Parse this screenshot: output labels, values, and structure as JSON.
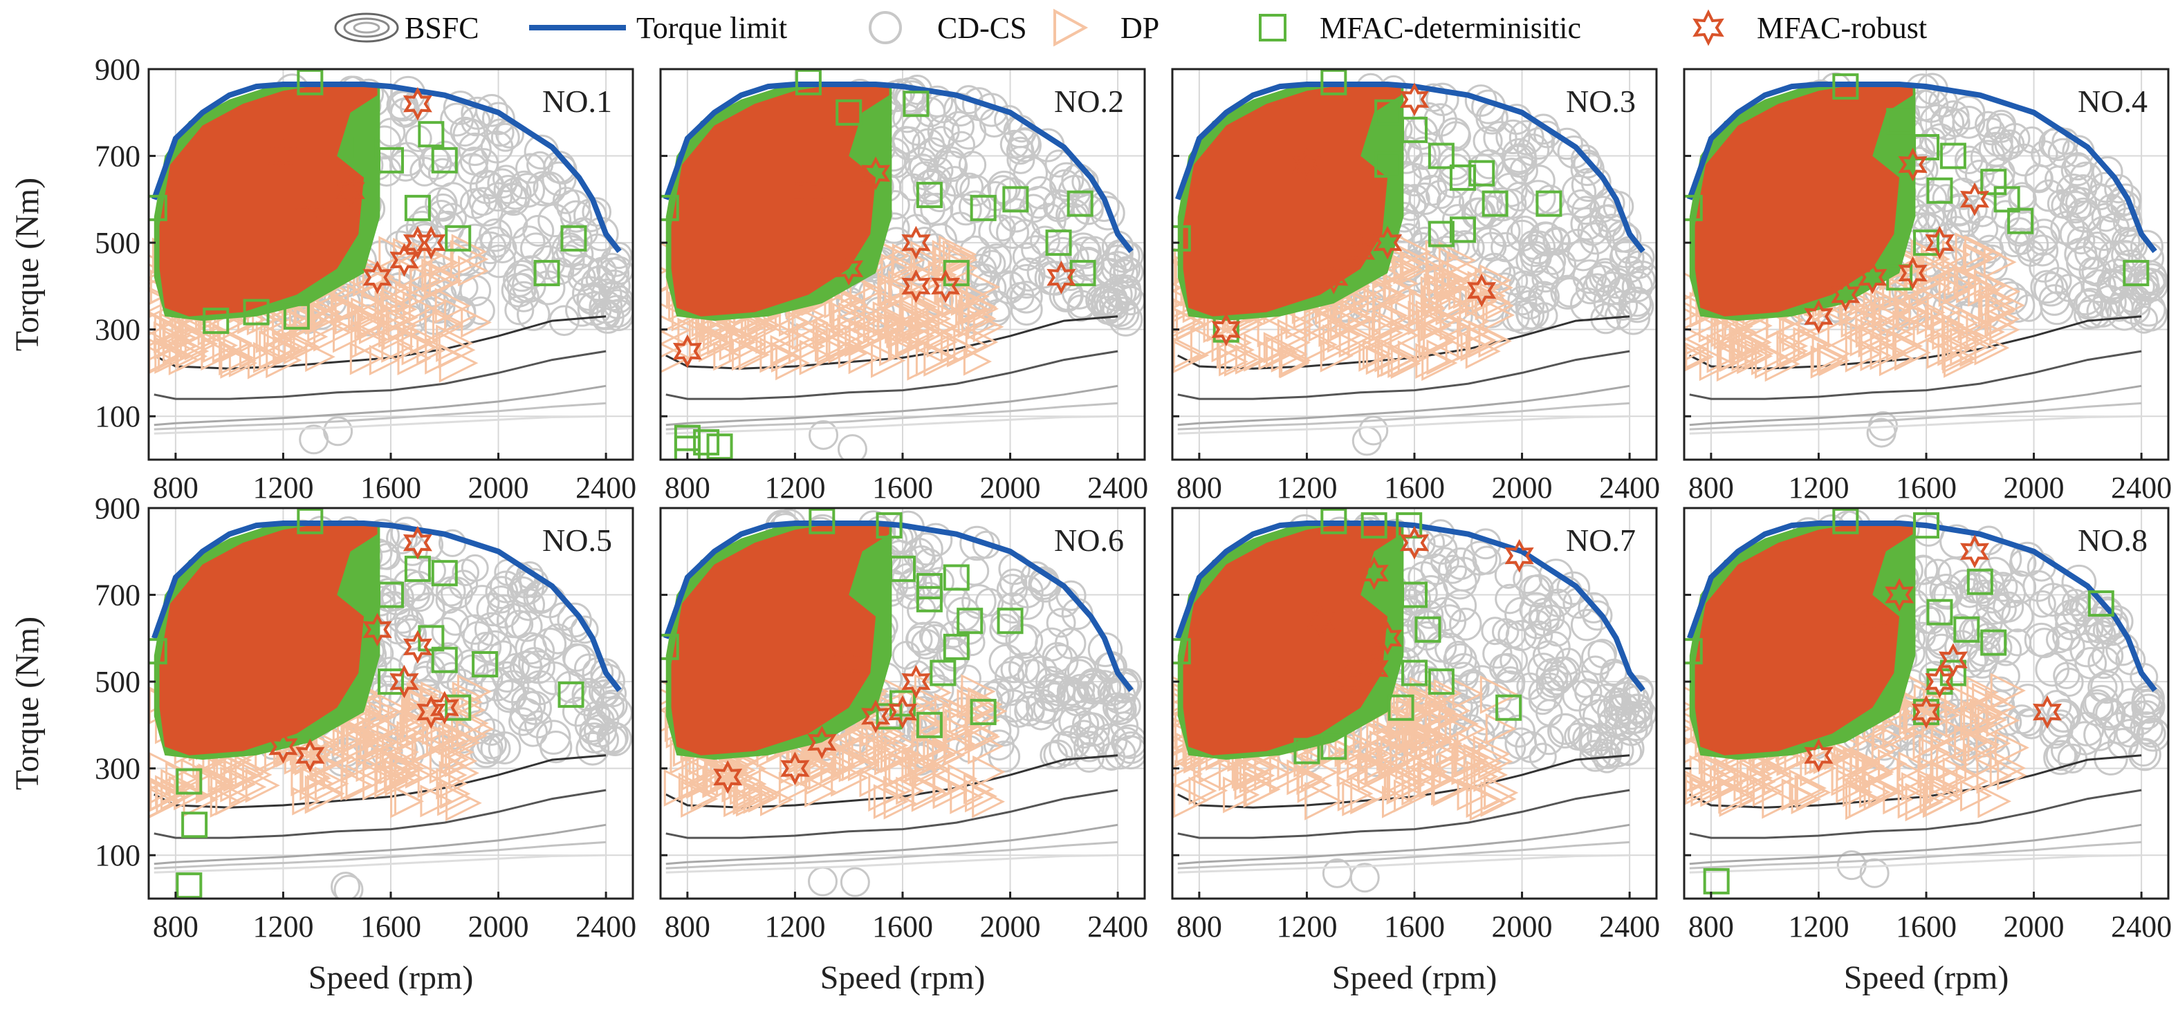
{
  "chart_data": {
    "type": "scatter",
    "layout": "grid 2x4 small multiples",
    "xlabel": "Speed (rpm)",
    "ylabel": "Torque (Nm)",
    "xlim": [
      700,
      2500
    ],
    "ylim": [
      0,
      900
    ],
    "xticks": [
      800,
      1200,
      1600,
      2000,
      2400
    ],
    "yticks": [
      100,
      300,
      500,
      700,
      900
    ],
    "grid": true,
    "legend": {
      "position": "top",
      "entries": [
        {
          "name": "BSFC",
          "marker": "contour-ellipses",
          "color": "#333333"
        },
        {
          "name": "Torque limit",
          "marker": "line",
          "color": "#1f5bb0"
        },
        {
          "name": "CD-CS",
          "marker": "circle",
          "color": "#c8c8c8"
        },
        {
          "name": "DP",
          "marker": "triangle-right",
          "color": "#f6c4a3"
        },
        {
          "name": "MFAC-determinisitic",
          "marker": "square",
          "color": "#5db53d"
        },
        {
          "name": "MFAC-robust",
          "marker": "hexagram",
          "color": "#d9532a"
        }
      ]
    },
    "torque_limit": {
      "x": [
        720,
        800,
        900,
        1000,
        1100,
        1200,
        1300,
        1400,
        1500,
        1600,
        1700,
        1800,
        1900,
        2000,
        2100,
        2200,
        2300,
        2350,
        2400,
        2450
      ],
      "y": [
        600,
        740,
        800,
        840,
        860,
        865,
        865,
        865,
        865,
        860,
        850,
        840,
        820,
        800,
        760,
        720,
        650,
        600,
        520,
        480
      ]
    },
    "bsfc_contours": [
      {
        "x": [
          720,
          800,
          1000,
          1200,
          1400,
          1600,
          1800,
          2000,
          2200,
          2400
        ],
        "y": [
          60,
          62,
          66,
          70,
          74,
          80,
          86,
          92,
          98,
          100
        ]
      },
      {
        "x": [
          720,
          800,
          1000,
          1200,
          1400,
          1600,
          1800,
          2000,
          2200,
          2400
        ],
        "y": [
          70,
          72,
          78,
          82,
          88,
          96,
          104,
          112,
          122,
          130
        ]
      },
      {
        "x": [
          720,
          800,
          1000,
          1200,
          1400,
          1600,
          1800,
          2000,
          2200,
          2400
        ],
        "y": [
          80,
          84,
          90,
          96,
          104,
          112,
          122,
          134,
          150,
          170
        ]
      },
      {
        "x": [
          720,
          800,
          1000,
          1200,
          1400,
          1600,
          1800,
          2000,
          2200,
          2400
        ],
        "y": [
          150,
          140,
          140,
          145,
          155,
          160,
          175,
          200,
          230,
          250
        ]
      },
      {
        "x": [
          720,
          800,
          1000,
          1200,
          1400,
          1600,
          1800,
          2000,
          2200,
          2400
        ],
        "y": [
          240,
          215,
          210,
          215,
          225,
          235,
          255,
          285,
          320,
          330
        ]
      }
    ],
    "panels": [
      {
        "title": "NO.1",
        "cdcs_n": 240,
        "dp_n": 200,
        "mfac_det": [
          [
            720,
            580
          ],
          [
            1300,
            870
          ],
          [
            1850,
            510
          ],
          [
            2180,
            430
          ],
          [
            2280,
            510
          ],
          [
            1700,
            580
          ],
          [
            1500,
            720
          ],
          [
            1600,
            690
          ],
          [
            950,
            320
          ],
          [
            1100,
            340
          ],
          [
            1250,
            330
          ],
          [
            1750,
            750
          ],
          [
            1800,
            690
          ]
        ],
        "mfac_rob": [
          [
            1700,
            820
          ],
          [
            1700,
            500
          ],
          [
            1750,
            500
          ],
          [
            1650,
            460
          ],
          [
            1550,
            420
          ],
          [
            1450,
            620
          ],
          [
            1300,
            560
          ],
          [
            1200,
            700
          ]
        ]
      },
      {
        "title": "NO.2",
        "cdcs_n": 240,
        "dp_n": 200,
        "mfac_det": [
          [
            720,
            580
          ],
          [
            1250,
            870
          ],
          [
            1650,
            820
          ],
          [
            1700,
            610
          ],
          [
            1900,
            580
          ],
          [
            2020,
            600
          ],
          [
            2180,
            500
          ],
          [
            2260,
            590
          ],
          [
            2270,
            430
          ],
          [
            800,
            50
          ],
          [
            870,
            40
          ],
          [
            920,
            30
          ],
          [
            800,
            25
          ],
          [
            1800,
            430
          ],
          [
            1400,
            800
          ]
        ],
        "mfac_rob": [
          [
            800,
            250
          ],
          [
            1650,
            500
          ],
          [
            1760,
            400
          ],
          [
            1650,
            400
          ],
          [
            2190,
            420
          ],
          [
            1500,
            660
          ],
          [
            1400,
            440
          ],
          [
            1250,
            620
          ]
        ]
      },
      {
        "title": "NO.3",
        "cdcs_n": 240,
        "dp_n": 200,
        "mfac_det": [
          [
            720,
            510
          ],
          [
            1300,
            870
          ],
          [
            1500,
            800
          ],
          [
            1600,
            760
          ],
          [
            1700,
            700
          ],
          [
            1780,
            650
          ],
          [
            1850,
            660
          ],
          [
            1900,
            590
          ],
          [
            2100,
            590
          ],
          [
            1780,
            530
          ],
          [
            1700,
            520
          ],
          [
            900,
            300
          ],
          [
            1500,
            680
          ]
        ],
        "mfac_rob": [
          [
            1600,
            830
          ],
          [
            1850,
            390
          ],
          [
            1400,
            480
          ],
          [
            1300,
            420
          ],
          [
            1200,
            680
          ],
          [
            900,
            300
          ],
          [
            1500,
            500
          ]
        ]
      },
      {
        "title": "NO.4",
        "cdcs_n": 240,
        "dp_n": 200,
        "mfac_det": [
          [
            720,
            580
          ],
          [
            1300,
            860
          ],
          [
            1500,
            780
          ],
          [
            1600,
            720
          ],
          [
            1700,
            700
          ],
          [
            1850,
            640
          ],
          [
            1900,
            600
          ],
          [
            1950,
            550
          ],
          [
            2380,
            430
          ],
          [
            1650,
            620
          ],
          [
            1600,
            500
          ],
          [
            1500,
            420
          ]
        ],
        "mfac_rob": [
          [
            1780,
            600
          ],
          [
            1650,
            500
          ],
          [
            1550,
            430
          ],
          [
            1400,
            420
          ],
          [
            1300,
            380
          ],
          [
            1200,
            330
          ],
          [
            1550,
            680
          ]
        ]
      },
      {
        "title": "NO.5",
        "cdcs_n": 240,
        "dp_n": 200,
        "mfac_det": [
          [
            720,
            570
          ],
          [
            1300,
            870
          ],
          [
            1700,
            760
          ],
          [
            1800,
            750
          ],
          [
            1600,
            700
          ],
          [
            1750,
            600
          ],
          [
            1800,
            550
          ],
          [
            1950,
            540
          ],
          [
            2270,
            470
          ],
          [
            1850,
            440
          ],
          [
            850,
            270
          ],
          [
            870,
            170
          ],
          [
            850,
            30
          ],
          [
            1600,
            500
          ]
        ],
        "mfac_rob": [
          [
            1700,
            820
          ],
          [
            1700,
            580
          ],
          [
            1650,
            500
          ],
          [
            1750,
            430
          ],
          [
            1800,
            440
          ],
          [
            1550,
            620
          ],
          [
            1200,
            350
          ],
          [
            1300,
            330
          ]
        ]
      },
      {
        "title": "NO.6",
        "cdcs_n": 240,
        "dp_n": 200,
        "mfac_det": [
          [
            720,
            580
          ],
          [
            1300,
            870
          ],
          [
            1550,
            860
          ],
          [
            1600,
            760
          ],
          [
            1700,
            720
          ],
          [
            1800,
            740
          ],
          [
            1700,
            690
          ],
          [
            1850,
            640
          ],
          [
            2000,
            640
          ],
          [
            1800,
            580
          ],
          [
            1750,
            520
          ],
          [
            1600,
            450
          ],
          [
            1700,
            400
          ],
          [
            1900,
            430
          ],
          [
            1550,
            420
          ]
        ],
        "mfac_rob": [
          [
            950,
            280
          ],
          [
            1650,
            500
          ],
          [
            1600,
            430
          ],
          [
            1500,
            420
          ],
          [
            1400,
            540
          ],
          [
            1300,
            360
          ],
          [
            1200,
            300
          ]
        ]
      },
      {
        "title": "NO.7",
        "cdcs_n": 240,
        "dp_n": 200,
        "mfac_det": [
          [
            720,
            570
          ],
          [
            1300,
            870
          ],
          [
            1450,
            860
          ],
          [
            1580,
            860
          ],
          [
            1600,
            700
          ],
          [
            1650,
            620
          ],
          [
            1600,
            520
          ],
          [
            1700,
            500
          ],
          [
            1950,
            440
          ],
          [
            1300,
            350
          ],
          [
            1200,
            340
          ],
          [
            1550,
            440
          ]
        ],
        "mfac_rob": [
          [
            1990,
            790
          ],
          [
            1450,
            750
          ],
          [
            1600,
            820
          ],
          [
            1500,
            600
          ],
          [
            1450,
            530
          ],
          [
            1350,
            500
          ],
          [
            1250,
            640
          ]
        ]
      },
      {
        "title": "NO.8",
        "cdcs_n": 240,
        "dp_n": 200,
        "mfac_det": [
          [
            720,
            570
          ],
          [
            1300,
            870
          ],
          [
            1600,
            860
          ],
          [
            1650,
            660
          ],
          [
            1750,
            620
          ],
          [
            1850,
            590
          ],
          [
            1800,
            730
          ],
          [
            2250,
            680
          ],
          [
            1700,
            520
          ],
          [
            1650,
            500
          ],
          [
            1600,
            430
          ],
          [
            820,
            40
          ]
        ],
        "mfac_rob": [
          [
            1780,
            800
          ],
          [
            2050,
            430
          ],
          [
            1700,
            550
          ],
          [
            1650,
            500
          ],
          [
            1600,
            430
          ],
          [
            1500,
            700
          ],
          [
            1400,
            650
          ],
          [
            1200,
            330
          ]
        ]
      }
    ]
  }
}
